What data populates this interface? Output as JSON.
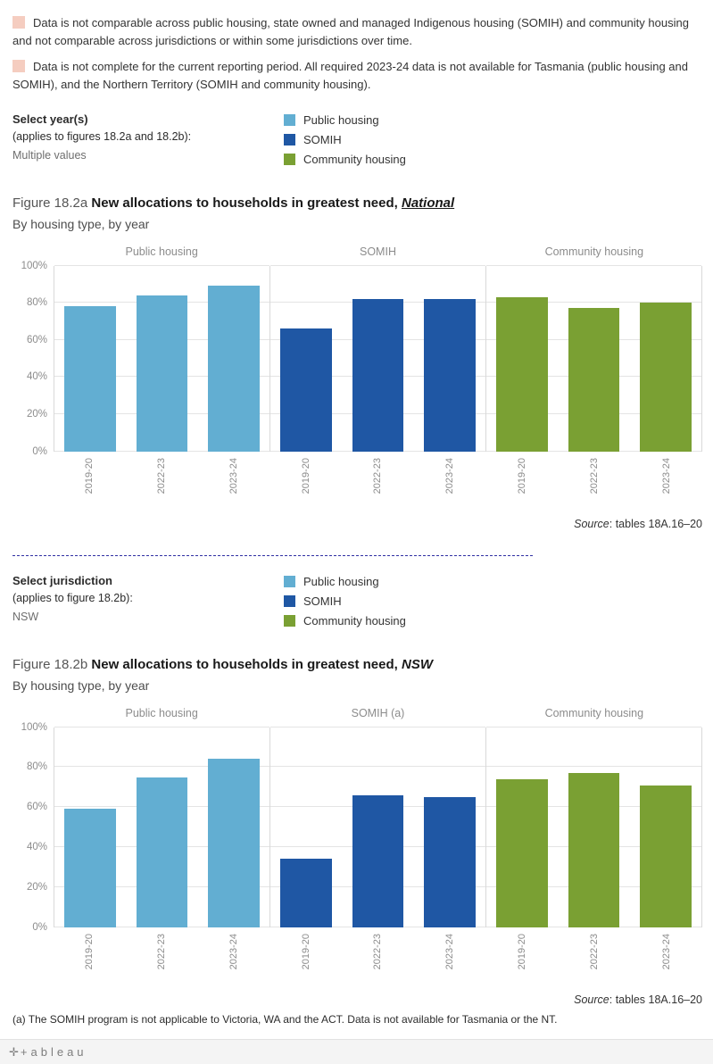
{
  "note_flag_color": "#f5cdc0",
  "notes": [
    "Data is not comparable across public housing, state owned and managed Indigenous housing (SOMIH) and community housing and not comparable across jurisdictions or within some jurisdictions over time.",
    "Data is not complete for the current reporting period. All required 2023-24 data is not available for Tasmania (public housing and SOMIH), and the Northern Territory (SOMIH and community housing)."
  ],
  "filters": {
    "year": {
      "label": "Select year(s)",
      "sublabel": "(applies to figures 18.2a and 18.2b):",
      "value": "Multiple values"
    },
    "jurisdiction": {
      "label": "Select jurisdiction",
      "sublabel": "(applies to figure 18.2b):",
      "value": "NSW"
    }
  },
  "legend": {
    "items": [
      {
        "label": "Public housing",
        "color": "#62aed2"
      },
      {
        "label": "SOMIH",
        "color": "#1f57a4"
      },
      {
        "label": "Community housing",
        "color": "#7aa033"
      }
    ]
  },
  "figure_a": {
    "prefix": "Figure 18.2a",
    "main": "New allocations to households in greatest need,",
    "emphasis": "National",
    "subtitle": "By housing type, by year",
    "source_label": "Source",
    "source_text": ": tables 18A.16–20"
  },
  "figure_b": {
    "prefix": "Figure 18.2b",
    "main": "New allocations to households in greatest need,",
    "emphasis": "NSW",
    "subtitle": "By housing type, by year",
    "source_label": "Source",
    "source_text": ": tables 18A.16–20",
    "footnote": "(a) The SOMIH program is not applicable to Victoria, WA and the ACT. Data is not available for Tasmania or the NT."
  },
  "footer": {
    "logo": "+ableau"
  },
  "chart_data": [
    {
      "type": "bar",
      "title": "Figure 18.2a New allocations to households in greatest need, National",
      "subtitle": "By housing type, by year",
      "panels": [
        "Public housing",
        "SOMIH",
        "Community housing"
      ],
      "categories": [
        "2019-20",
        "2022-23",
        "2023-24"
      ],
      "series": [
        {
          "name": "Public housing",
          "color": "#62aed2",
          "values": [
            78,
            84,
            89
          ]
        },
        {
          "name": "SOMIH",
          "color": "#1f57a4",
          "values": [
            66,
            82,
            82
          ]
        },
        {
          "name": "Community housing",
          "color": "#7aa033",
          "values": [
            83,
            77,
            80
          ]
        }
      ],
      "ylim": [
        0,
        100
      ],
      "yticks": [
        "0%",
        "20%",
        "40%",
        "60%",
        "80%",
        "100%"
      ],
      "grid": true,
      "legend_position": "top"
    },
    {
      "type": "bar",
      "title": "Figure 18.2b New allocations to households in greatest need, NSW",
      "subtitle": "By housing type, by year",
      "panels": [
        "Public housing",
        "SOMIH (a)",
        "Community housing"
      ],
      "categories": [
        "2019-20",
        "2022-23",
        "2023-24"
      ],
      "series": [
        {
          "name": "Public housing",
          "color": "#62aed2",
          "values": [
            59,
            75,
            84
          ]
        },
        {
          "name": "SOMIH",
          "color": "#1f57a4",
          "values": [
            34,
            66,
            65
          ]
        },
        {
          "name": "Community housing",
          "color": "#7aa033",
          "values": [
            74,
            77,
            71
          ]
        }
      ],
      "ylim": [
        0,
        100
      ],
      "yticks": [
        "0%",
        "20%",
        "40%",
        "60%",
        "80%",
        "100%"
      ],
      "grid": true,
      "legend_position": "top"
    }
  ]
}
